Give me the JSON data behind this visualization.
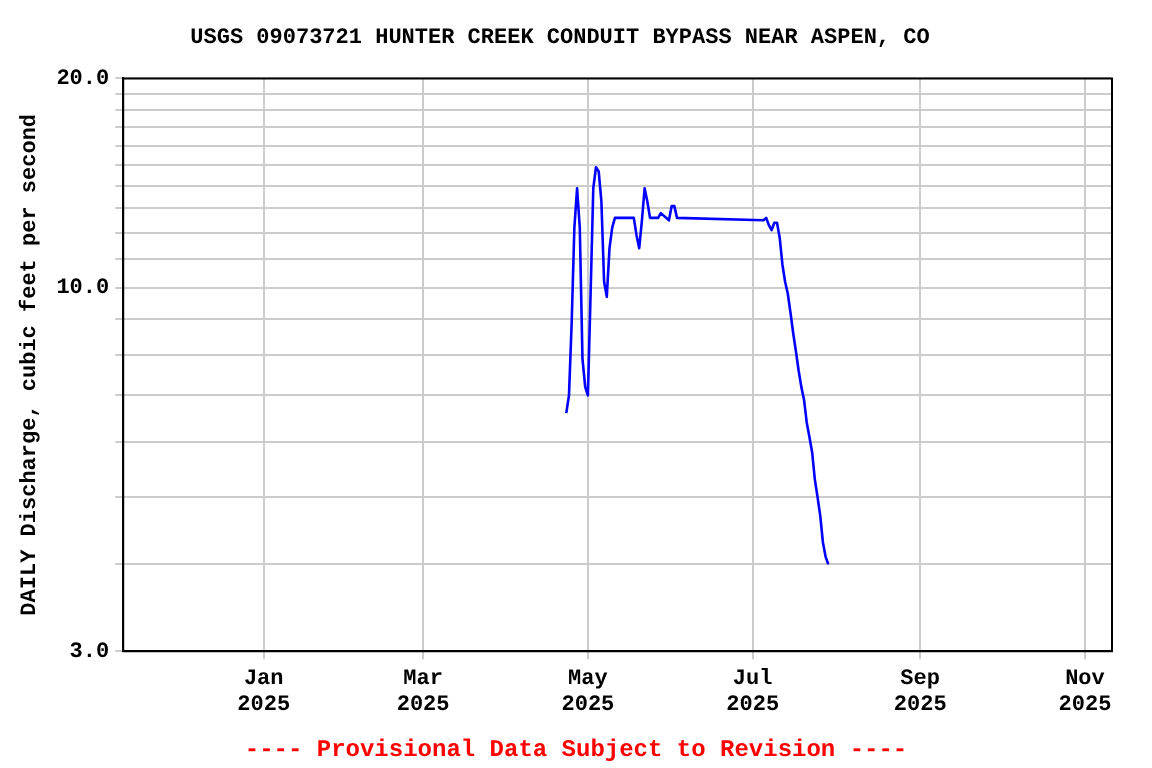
{
  "chart_data": {
    "type": "line",
    "title": "USGS 09073721 HUNTER CREEK CONDUIT BYPASS NEAR ASPEN, CO",
    "ylabel": "DAILY Discharge, cubic feet per second",
    "annotations": [
      "---- Provisional Data Subject to Revision ----"
    ],
    "x": [
      "2025-04-23",
      "2025-04-24",
      "2025-04-25",
      "2025-04-26",
      "2025-04-27",
      "2025-04-28",
      "2025-04-29",
      "2025-04-30",
      "2025-05-01",
      "2025-05-02",
      "2025-05-03",
      "2025-05-04",
      "2025-05-05",
      "2025-05-06",
      "2025-05-07",
      "2025-05-08",
      "2025-05-09",
      "2025-05-10",
      "2025-05-11",
      "2025-05-18",
      "2025-05-19",
      "2025-05-20",
      "2025-05-21",
      "2025-05-22",
      "2025-05-23",
      "2025-05-24",
      "2025-05-27",
      "2025-05-28",
      "2025-05-31",
      "2025-06-01",
      "2025-06-02",
      "2025-06-03",
      "2025-07-05",
      "2025-07-06",
      "2025-07-07",
      "2025-07-08",
      "2025-07-09",
      "2025-07-10",
      "2025-07-11",
      "2025-07-12",
      "2025-07-13",
      "2025-07-14",
      "2025-07-15",
      "2025-07-16",
      "2025-07-17",
      "2025-07-18",
      "2025-07-19",
      "2025-07-20",
      "2025-07-21",
      "2025-07-22",
      "2025-07-23",
      "2025-07-24",
      "2025-07-25",
      "2025-07-26",
      "2025-07-27",
      "2025-07-28",
      "2025-07-29"
    ],
    "series": [
      {
        "color": "#0000ff",
        "values": [
          6.6,
          7.0,
          8.9,
          12.2,
          13.9,
          12.2,
          7.9,
          7.2,
          7.0,
          9.8,
          13.9,
          14.9,
          14.7,
          13.3,
          10.2,
          9.7,
          11.4,
          12.2,
          12.6,
          12.6,
          11.9,
          11.4,
          12.5,
          13.9,
          13.3,
          12.6,
          12.6,
          12.8,
          12.5,
          13.1,
          13.1,
          12.6,
          12.5,
          12.6,
          12.3,
          12.1,
          12.4,
          12.4,
          11.8,
          10.8,
          10.2,
          9.8,
          9.2,
          8.6,
          8.1,
          7.6,
          7.2,
          6.9,
          6.4,
          6.1,
          5.8,
          5.3,
          5.0,
          4.7,
          4.3,
          4.1,
          4.0
        ]
      }
    ],
    "log": "y",
    "grid": true,
    "legend": false,
    "marker": "none",
    "line_style": "solid",
    "xlim": [
      "2024-11-10",
      "2025-11-11"
    ],
    "xticks": [
      {
        "value": "2025-01-01",
        "label": "Jan 2025"
      },
      {
        "value": "2025-03-01",
        "label": "Mar 2025"
      },
      {
        "value": "2025-05-01",
        "label": "May 2025"
      },
      {
        "value": "2025-07-01",
        "label": "Jul 2025"
      },
      {
        "value": "2025-09-01",
        "label": "Sep 2025"
      },
      {
        "value": "2025-11-01",
        "label": "Nov 2025"
      }
    ],
    "ylim": [
      3,
      20
    ],
    "yticks": [
      {
        "value": 3,
        "label": "3.0"
      },
      {
        "value": 4,
        "label": null
      },
      {
        "value": 5,
        "label": null
      },
      {
        "value": 6,
        "label": null
      },
      {
        "value": 7,
        "label": null
      },
      {
        "value": 8,
        "label": null
      },
      {
        "value": 9,
        "label": null
      },
      {
        "value": 10,
        "label": "10.0"
      },
      {
        "value": 11,
        "label": null
      },
      {
        "value": 12,
        "label": null
      },
      {
        "value": 13,
        "label": null
      },
      {
        "value": 14,
        "label": null
      },
      {
        "value": 15,
        "label": null
      },
      {
        "value": 16,
        "label": null
      },
      {
        "value": 17,
        "label": null
      },
      {
        "value": 18,
        "label": null
      },
      {
        "value": 19,
        "label": null
      },
      {
        "value": 20,
        "label": "20.0"
      }
    ]
  }
}
